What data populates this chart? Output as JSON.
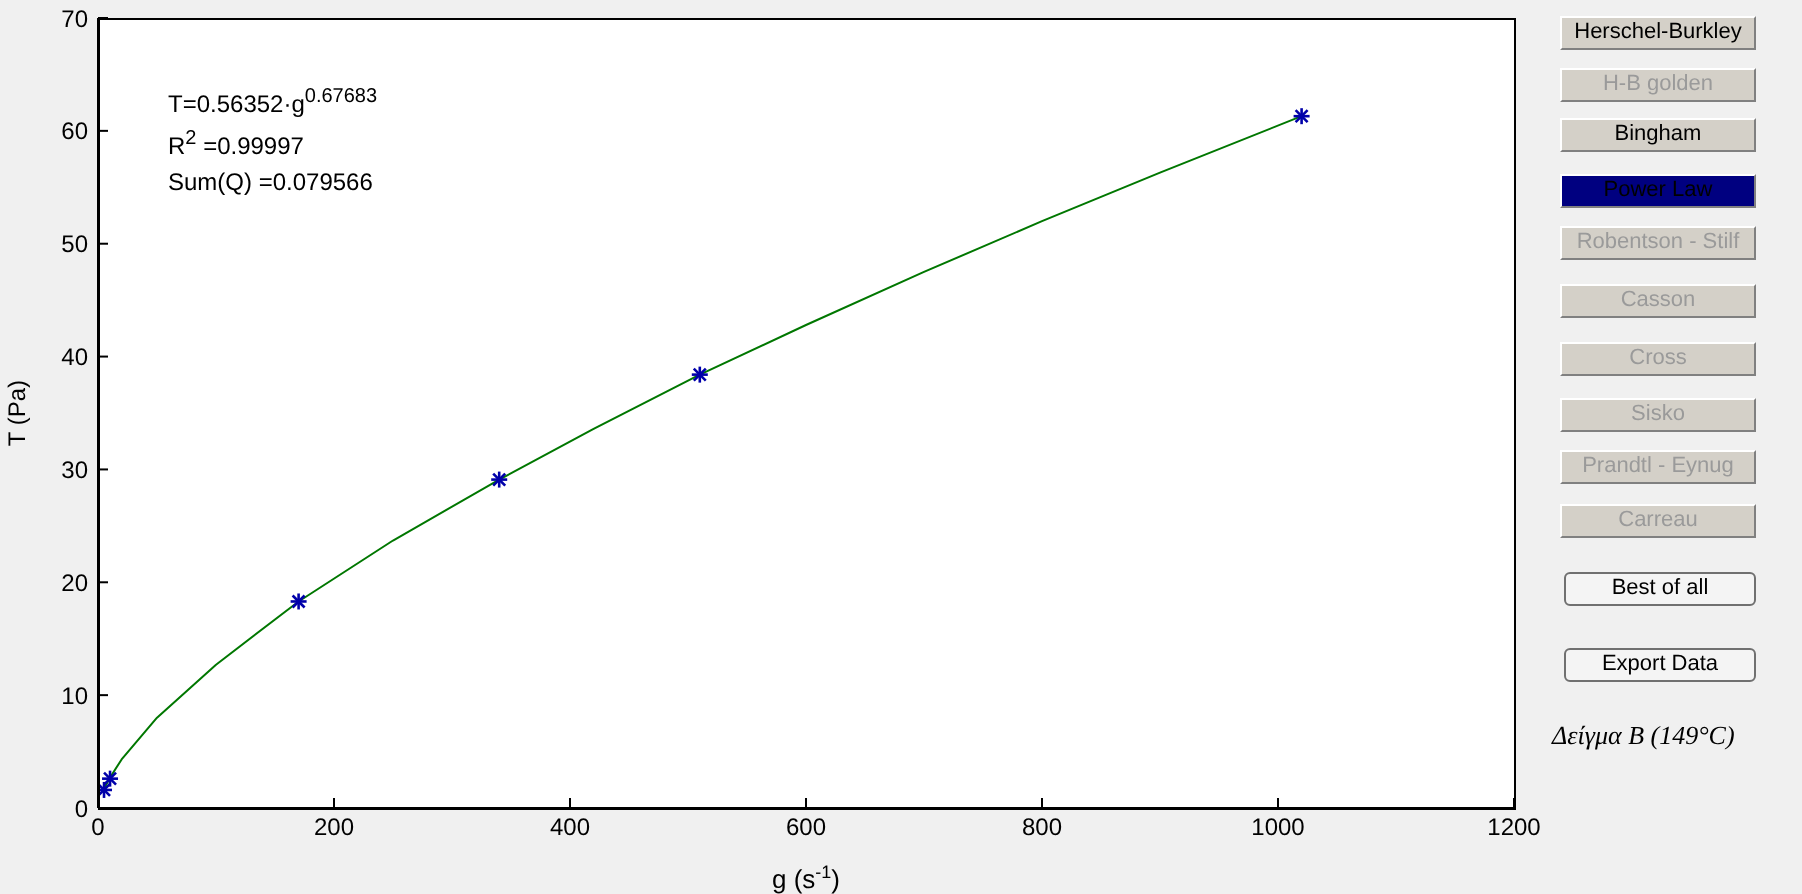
{
  "chart_data": {
    "type": "scatter",
    "xlabel": "g (s$^{-1}$)",
    "ylabel": "T (Pa)",
    "xlim": [
      0,
      1200
    ],
    "xticks": [
      0,
      200,
      400,
      600,
      800,
      1000,
      1200
    ],
    "ylim": [
      0,
      70
    ],
    "yticks": [
      0,
      10,
      20,
      30,
      40,
      50,
      60,
      70
    ],
    "marker": "cross",
    "series": [
      {
        "type": "line",
        "color": "#007700",
        "marker": "none",
        "x": [
          5.1,
          10.2,
          20,
          50,
          100,
          170,
          250,
          340,
          420,
          510,
          600,
          700,
          800,
          900,
          1020
        ],
        "values": [
          1.7,
          2.7,
          4.3,
          8.0,
          12.7,
          18.3,
          23.7,
          29.1,
          33.6,
          38.4,
          42.8,
          47.5,
          52.0,
          56.3,
          61.3
        ]
      },
      {
        "color": "#0000aa",
        "x": [
          5.1,
          10.2,
          170,
          340,
          510,
          1020
        ],
        "values": [
          1.6,
          2.6,
          18.3,
          29.1,
          38.4,
          61.3
        ]
      }
    ],
    "annotations": [
      "T=0.56352·g$^{0.67683}$",
      "R$^{2}$ =0.99997",
      "Sum(Q) =0.079566",
      "Herschel-Burkley",
      "H-B golden",
      "Bingham",
      "Power Law",
      "Robentson - Stilf",
      "Casson",
      "Cross",
      "Sisko",
      "Prandtl - Eynug",
      "Carreau",
      "Best of all",
      "Export Data",
      "Δείγμα Β (149°C)"
    ]
  }
}
